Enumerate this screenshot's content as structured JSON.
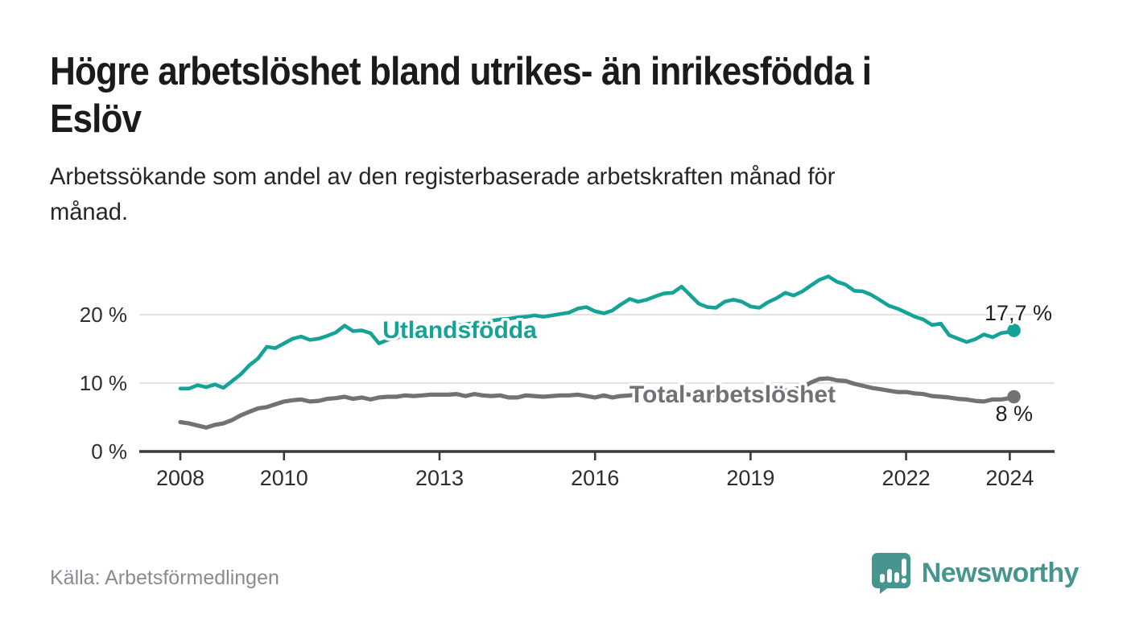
{
  "header": {
    "title": "Högre arbetslöshet bland utrikes- än inrikesfödda i\nEslöv",
    "subtitle": "Arbetssökande som andel av den registerbaserade arbetskraften månad för\nmånad."
  },
  "footer": {
    "source_label": "Källa: Arbetsförmedlingen",
    "logo_text": "Newsworthy",
    "logo_color": "#46968F"
  },
  "chart_data": {
    "type": "line",
    "title": "",
    "xlabel": "",
    "ylabel": "",
    "unit": "%",
    "x_axis": {
      "ticks": [
        2008,
        2010,
        2013,
        2016,
        2019,
        2022,
        2024
      ],
      "range": [
        2007.2,
        2024.9
      ]
    },
    "y_axis": {
      "ticks": [
        {
          "value": 0,
          "label": "0 %"
        },
        {
          "value": 10,
          "label": "10 %"
        },
        {
          "value": 20,
          "label": "20 %"
        }
      ],
      "gridlines": [
        10,
        20
      ],
      "range": [
        0,
        27
      ]
    },
    "x": [
      2008.0,
      2008.17,
      2008.33,
      2008.5,
      2008.67,
      2008.83,
      2009.0,
      2009.17,
      2009.33,
      2009.5,
      2009.67,
      2009.83,
      2010.0,
      2010.17,
      2010.33,
      2010.5,
      2010.67,
      2010.83,
      2011.0,
      2011.17,
      2011.33,
      2011.5,
      2011.67,
      2011.83,
      2012.0,
      2012.17,
      2012.33,
      2012.5,
      2012.67,
      2012.83,
      2013.0,
      2013.17,
      2013.33,
      2013.5,
      2013.67,
      2013.83,
      2014.0,
      2014.17,
      2014.33,
      2014.5,
      2014.67,
      2014.83,
      2015.0,
      2015.17,
      2015.33,
      2015.5,
      2015.67,
      2015.83,
      2016.0,
      2016.17,
      2016.33,
      2016.5,
      2016.67,
      2016.83,
      2017.0,
      2017.17,
      2017.33,
      2017.5,
      2017.67,
      2017.83,
      2018.0,
      2018.17,
      2018.33,
      2018.5,
      2018.67,
      2018.83,
      2019.0,
      2019.17,
      2019.33,
      2019.5,
      2019.67,
      2019.83,
      2020.0,
      2020.17,
      2020.33,
      2020.5,
      2020.67,
      2020.83,
      2021.0,
      2021.17,
      2021.33,
      2021.5,
      2021.67,
      2021.83,
      2022.0,
      2022.17,
      2022.33,
      2022.5,
      2022.67,
      2022.83,
      2023.0,
      2023.17,
      2023.33,
      2023.5,
      2023.67,
      2023.83,
      2024.0,
      2024.08
    ],
    "series": [
      {
        "name": "Utlandsfödda",
        "color": "#14A396",
        "end_label": "17,7 %",
        "end_value": 17.7,
        "values": [
          9.2,
          9.2,
          9.7,
          9.4,
          9.8,
          9.3,
          10.3,
          11.3,
          12.6,
          13.6,
          15.3,
          15.1,
          15.8,
          16.5,
          16.8,
          16.3,
          16.5,
          16.9,
          17.4,
          18.4,
          17.6,
          17.7,
          17.3,
          15.8,
          16.3,
          16.6,
          17.0,
          17.3,
          17.6,
          17.9,
          18.1,
          18.3,
          18.5,
          18.6,
          18.8,
          19.0,
          19.1,
          19.3,
          19.4,
          19.6,
          19.7,
          19.9,
          19.7,
          19.9,
          20.1,
          20.3,
          20.9,
          21.1,
          20.5,
          20.2,
          20.6,
          21.5,
          22.3,
          21.9,
          22.2,
          22.7,
          23.1,
          23.2,
          24.1,
          22.9,
          21.6,
          21.1,
          21.0,
          21.9,
          22.2,
          21.9,
          21.2,
          21.0,
          21.8,
          22.4,
          23.2,
          22.8,
          23.4,
          24.3,
          25.1,
          25.6,
          24.8,
          24.4,
          23.5,
          23.4,
          22.9,
          22.1,
          21.3,
          20.9,
          20.3,
          19.7,
          19.3,
          18.5,
          18.7,
          17.0,
          16.5,
          16.0,
          16.4,
          17.1,
          16.7,
          17.3,
          17.5,
          17.7
        ]
      },
      {
        "name": "Total arbetslöshet",
        "color": "#717176",
        "end_label": "8 %",
        "end_value": 8.0,
        "values": [
          4.3,
          4.1,
          3.8,
          3.5,
          3.9,
          4.1,
          4.6,
          5.3,
          5.8,
          6.3,
          6.5,
          6.9,
          7.3,
          7.5,
          7.6,
          7.3,
          7.4,
          7.7,
          7.8,
          8.0,
          7.7,
          7.9,
          7.6,
          7.9,
          8.0,
          8.0,
          8.2,
          8.1,
          8.2,
          8.3,
          8.3,
          8.3,
          8.4,
          8.1,
          8.4,
          8.2,
          8.1,
          8.2,
          7.9,
          7.9,
          8.2,
          8.1,
          8.0,
          8.1,
          8.2,
          8.2,
          8.3,
          8.1,
          7.9,
          8.2,
          7.9,
          8.1,
          8.2,
          8.3,
          8.2,
          8.3,
          8.4,
          8.3,
          8.4,
          8.3,
          8.2,
          8.3,
          8.2,
          8.3,
          8.4,
          8.3,
          8.4,
          8.5,
          8.6,
          8.7,
          8.9,
          9.1,
          9.4,
          10.1,
          10.6,
          10.7,
          10.4,
          10.3,
          9.9,
          9.6,
          9.3,
          9.1,
          8.9,
          8.7,
          8.7,
          8.5,
          8.4,
          8.1,
          8.0,
          7.9,
          7.7,
          7.6,
          7.4,
          7.3,
          7.6,
          7.6,
          7.8,
          8.0
        ]
      }
    ],
    "legend_position": "inline-labels"
  }
}
